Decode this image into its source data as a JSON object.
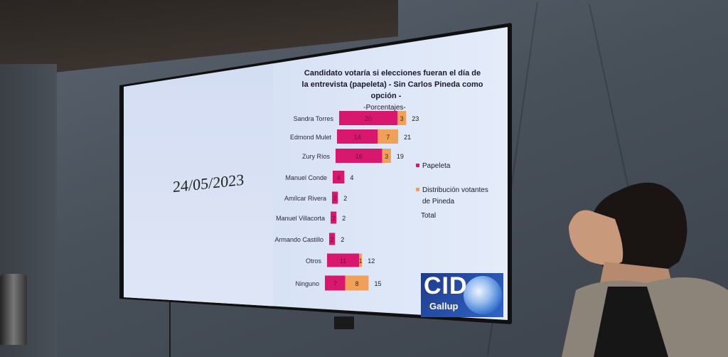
{
  "slide": {
    "date": "24/05/2023",
    "logo_text": "CID",
    "logo_subtext": "Gallup"
  },
  "chart_data": {
    "type": "bar",
    "stacked": true,
    "orientation": "horizontal",
    "title_lines": [
      "Candidato votaría si elecciones fueran el día de",
      "la entrevista (papeleta) - Sin Carlos Pineda como",
      "opción -",
      "-Porcentajes-"
    ],
    "categories": [
      "Sandra Torres",
      "Edmond Mulet",
      "Zury Ríos",
      "Manuel Conde",
      "Amílcar Rivera",
      "Manuel Villacorta",
      "Armando Castillo",
      "Otros",
      "Ninguno"
    ],
    "series": [
      {
        "name": "Papeleta",
        "color": "#d8186f",
        "values": [
          20,
          14,
          16,
          4,
          2,
          2,
          2,
          11,
          7
        ],
        "labels": [
          "20",
          "14",
          "16",
          "4",
          "2",
          "2",
          "2",
          "11",
          "7"
        ]
      },
      {
        "name": "Distribución votantes de Pineda",
        "color": "#f0a058",
        "values": [
          3,
          7,
          3,
          0,
          0,
          0,
          0,
          1,
          8
        ],
        "labels": [
          "3",
          "7",
          "3",
          "",
          "",
          "",
          "",
          "1",
          "8"
        ]
      }
    ],
    "totals": [
      "23",
      "21",
      "19",
      "4",
      "2",
      "2",
      "2",
      "12",
      "15"
    ],
    "legend": [
      {
        "label": "Papeleta",
        "color": "#d8186f"
      },
      {
        "label": "Distribución votantes",
        "label2": "de Pineda",
        "color": "#f0a058"
      },
      {
        "label": "Total",
        "color": ""
      }
    ],
    "legend_position": "right"
  }
}
